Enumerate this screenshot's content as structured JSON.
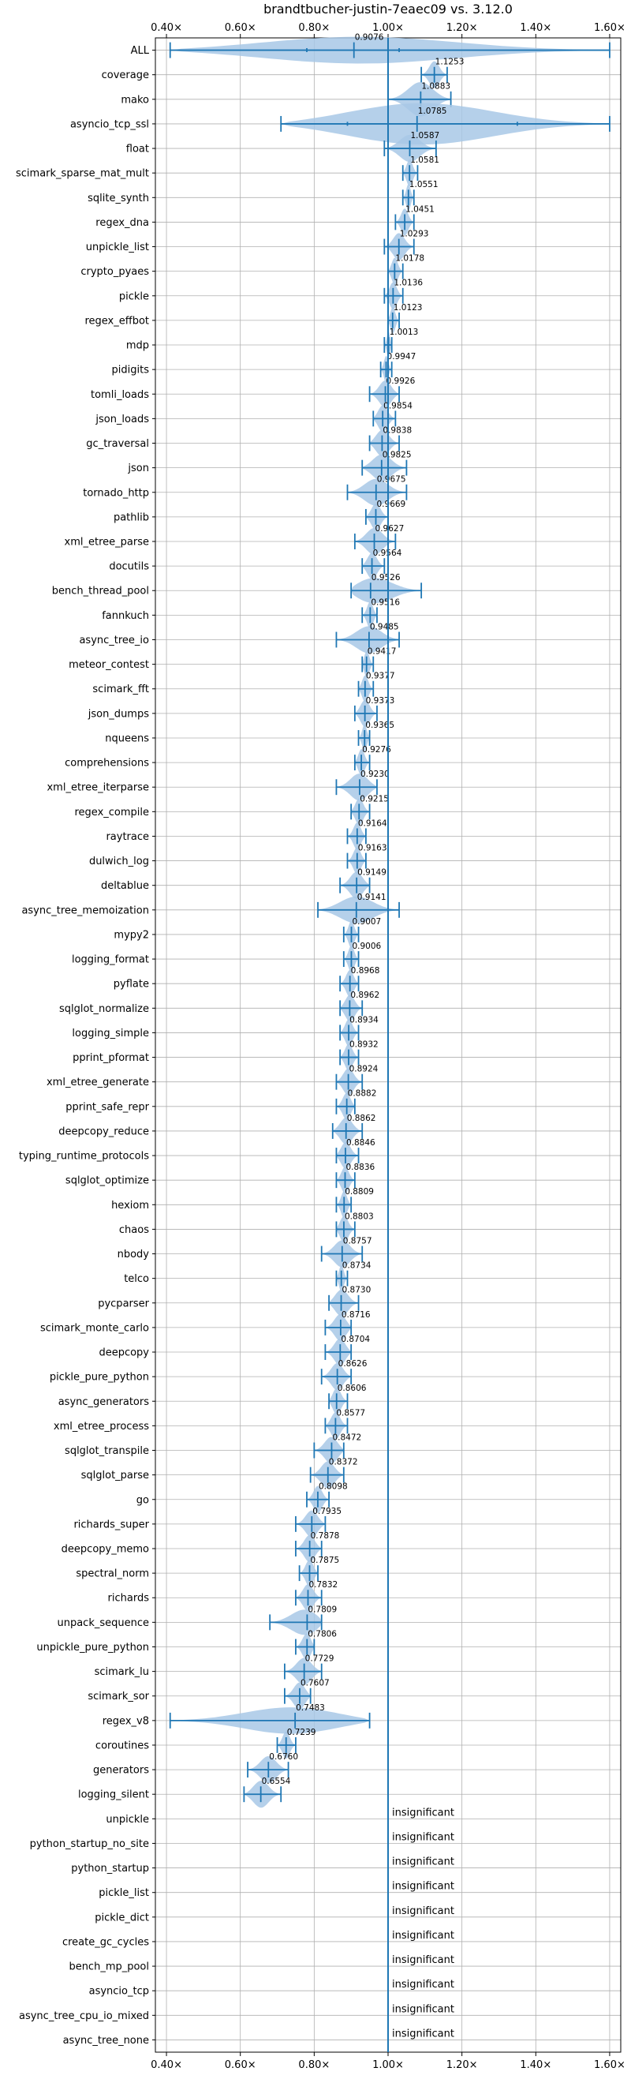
{
  "chart_data": {
    "type": "violin",
    "title": "brandtbucher-justin-7eaec09 vs. 3.12.0",
    "xlim": [
      0.37,
      1.63
    ],
    "xticks": [
      0.4,
      0.6,
      0.8,
      1.0,
      1.2,
      1.4,
      1.6
    ],
    "xtick_labels": [
      "0.40×",
      "0.60×",
      "0.80×",
      "1.00×",
      "1.20×",
      "1.40×",
      "1.60×"
    ],
    "reference_line": 1.0,
    "grid": true,
    "color": "#1f77b4",
    "fill_color": "#a8c8e6",
    "insignificant_label": "insignificant",
    "benchmarks": [
      {
        "name": "ALL",
        "value": 0.9076,
        "label": "0.9076",
        "min": 0.41,
        "max": 1.6,
        "q1": 0.78,
        "q3": 1.03,
        "width": 0.55
      },
      {
        "name": "coverage",
        "value": 1.1253,
        "label": "1.1253",
        "min": 1.09,
        "max": 1.16
      },
      {
        "name": "mako",
        "value": 1.0883,
        "label": "1.0883",
        "min": 1.0,
        "max": 1.17,
        "width": 0.7
      },
      {
        "name": "asyncio_tcp_ssl",
        "value": 1.0785,
        "label": "1.0785",
        "min": 0.71,
        "max": 1.6,
        "q1": 0.89,
        "q3": 1.35,
        "width": 0.85
      },
      {
        "name": "float",
        "value": 1.0587,
        "label": "1.0587",
        "min": 0.99,
        "max": 1.13
      },
      {
        "name": "scimark_sparse_mat_mult",
        "value": 1.0581,
        "label": "1.0581",
        "min": 1.04,
        "max": 1.08
      },
      {
        "name": "sqlite_synth",
        "value": 1.0551,
        "label": "1.0551",
        "min": 1.04,
        "max": 1.07
      },
      {
        "name": "regex_dna",
        "value": 1.0451,
        "label": "1.0451",
        "min": 1.02,
        "max": 1.07
      },
      {
        "name": "unpickle_list",
        "value": 1.0293,
        "label": "1.0293",
        "min": 0.99,
        "max": 1.07
      },
      {
        "name": "crypto_pyaes",
        "value": 1.0178,
        "label": "1.0178",
        "min": 1.0,
        "max": 1.04
      },
      {
        "name": "pickle",
        "value": 1.0136,
        "label": "1.0136",
        "min": 0.99,
        "max": 1.04
      },
      {
        "name": "regex_effbot",
        "value": 1.0123,
        "label": "1.0123",
        "min": 1.0,
        "max": 1.03
      },
      {
        "name": "mdp",
        "value": 1.0013,
        "label": "1.0013",
        "min": 0.99,
        "max": 1.01
      },
      {
        "name": "pidigits",
        "value": 0.9947,
        "label": "0.9947",
        "min": 0.98,
        "max": 1.01
      },
      {
        "name": "tomli_loads",
        "value": 0.9926,
        "label": "0.9926",
        "min": 0.95,
        "max": 1.03
      },
      {
        "name": "json_loads",
        "value": 0.9854,
        "label": "0.9854",
        "min": 0.96,
        "max": 1.02
      },
      {
        "name": "gc_traversal",
        "value": 0.9838,
        "label": "0.9838",
        "min": 0.95,
        "max": 1.03
      },
      {
        "name": "json",
        "value": 0.9825,
        "label": "0.9825",
        "min": 0.93,
        "max": 1.05
      },
      {
        "name": "tornado_http",
        "value": 0.9675,
        "label": "0.9675",
        "min": 0.89,
        "max": 1.05
      },
      {
        "name": "pathlib",
        "value": 0.9669,
        "label": "0.9669",
        "min": 0.94,
        "max": 1.0
      },
      {
        "name": "xml_etree_parse",
        "value": 0.9627,
        "label": "0.9627",
        "min": 0.91,
        "max": 1.02
      },
      {
        "name": "docutils",
        "value": 0.9564,
        "label": "0.9564",
        "min": 0.93,
        "max": 0.99
      },
      {
        "name": "bench_thread_pool",
        "value": 0.9526,
        "label": "0.9526",
        "min": 0.9,
        "max": 1.09
      },
      {
        "name": "fannkuch",
        "value": 0.9516,
        "label": "0.9516",
        "min": 0.93,
        "max": 0.97
      },
      {
        "name": "async_tree_io",
        "value": 0.9485,
        "label": "0.9485",
        "min": 0.86,
        "max": 1.03
      },
      {
        "name": "meteor_contest",
        "value": 0.9417,
        "label": "0.9417",
        "min": 0.93,
        "max": 0.96
      },
      {
        "name": "scimark_fft",
        "value": 0.9377,
        "label": "0.9377",
        "min": 0.92,
        "max": 0.96
      },
      {
        "name": "json_dumps",
        "value": 0.9373,
        "label": "0.9373",
        "min": 0.91,
        "max": 0.97
      },
      {
        "name": "nqueens",
        "value": 0.9365,
        "label": "0.9365",
        "min": 0.92,
        "max": 0.95
      },
      {
        "name": "comprehensions",
        "value": 0.9276,
        "label": "0.9276",
        "min": 0.91,
        "max": 0.95
      },
      {
        "name": "xml_etree_iterparse",
        "value": 0.923,
        "label": "0.9230",
        "min": 0.86,
        "max": 0.97
      },
      {
        "name": "regex_compile",
        "value": 0.9215,
        "label": "0.9215",
        "min": 0.9,
        "max": 0.95
      },
      {
        "name": "raytrace",
        "value": 0.9164,
        "label": "0.9164",
        "min": 0.89,
        "max": 0.94
      },
      {
        "name": "dulwich_log",
        "value": 0.9163,
        "label": "0.9163",
        "min": 0.89,
        "max": 0.94
      },
      {
        "name": "deltablue",
        "value": 0.9149,
        "label": "0.9149",
        "min": 0.87,
        "max": 0.95
      },
      {
        "name": "async_tree_memoization",
        "value": 0.9141,
        "label": "0.9141",
        "min": 0.81,
        "max": 1.03
      },
      {
        "name": "mypy2",
        "value": 0.9007,
        "label": "0.9007",
        "min": 0.88,
        "max": 0.92
      },
      {
        "name": "logging_format",
        "value": 0.9006,
        "label": "0.9006",
        "min": 0.88,
        "max": 0.92
      },
      {
        "name": "pyflate",
        "value": 0.8968,
        "label": "0.8968",
        "min": 0.87,
        "max": 0.92
      },
      {
        "name": "sqlglot_normalize",
        "value": 0.8962,
        "label": "0.8962",
        "min": 0.87,
        "max": 0.93
      },
      {
        "name": "logging_simple",
        "value": 0.8934,
        "label": "0.8934",
        "min": 0.87,
        "max": 0.92
      },
      {
        "name": "pprint_pformat",
        "value": 0.8932,
        "label": "0.8932",
        "min": 0.87,
        "max": 0.92
      },
      {
        "name": "xml_etree_generate",
        "value": 0.8924,
        "label": "0.8924",
        "min": 0.86,
        "max": 0.93
      },
      {
        "name": "pprint_safe_repr",
        "value": 0.8882,
        "label": "0.8882",
        "min": 0.86,
        "max": 0.91
      },
      {
        "name": "deepcopy_reduce",
        "value": 0.8862,
        "label": "0.8862",
        "min": 0.85,
        "max": 0.93
      },
      {
        "name": "typing_runtime_protocols",
        "value": 0.8846,
        "label": "0.8846",
        "min": 0.86,
        "max": 0.92
      },
      {
        "name": "sqlglot_optimize",
        "value": 0.8836,
        "label": "0.8836",
        "min": 0.86,
        "max": 0.91
      },
      {
        "name": "hexiom",
        "value": 0.8809,
        "label": "0.8809",
        "min": 0.86,
        "max": 0.9
      },
      {
        "name": "chaos",
        "value": 0.8803,
        "label": "0.8803",
        "min": 0.86,
        "max": 0.91
      },
      {
        "name": "nbody",
        "value": 0.8757,
        "label": "0.8757",
        "min": 0.82,
        "max": 0.93
      },
      {
        "name": "telco",
        "value": 0.8734,
        "label": "0.8734",
        "min": 0.86,
        "max": 0.89
      },
      {
        "name": "pycparser",
        "value": 0.873,
        "label": "0.8730",
        "min": 0.84,
        "max": 0.92
      },
      {
        "name": "scimark_monte_carlo",
        "value": 0.8716,
        "label": "0.8716",
        "min": 0.83,
        "max": 0.9
      },
      {
        "name": "deepcopy",
        "value": 0.8704,
        "label": "0.8704",
        "min": 0.83,
        "max": 0.9
      },
      {
        "name": "pickle_pure_python",
        "value": 0.8626,
        "label": "0.8626",
        "min": 0.82,
        "max": 0.9
      },
      {
        "name": "async_generators",
        "value": 0.8606,
        "label": "0.8606",
        "min": 0.84,
        "max": 0.89
      },
      {
        "name": "xml_etree_process",
        "value": 0.8577,
        "label": "0.8577",
        "min": 0.83,
        "max": 0.89
      },
      {
        "name": "sqlglot_transpile",
        "value": 0.8472,
        "label": "0.8472",
        "min": 0.8,
        "max": 0.88
      },
      {
        "name": "sqlglot_parse",
        "value": 0.8372,
        "label": "0.8372",
        "min": 0.79,
        "max": 0.88
      },
      {
        "name": "go",
        "value": 0.8098,
        "label": "0.8098",
        "min": 0.78,
        "max": 0.84
      },
      {
        "name": "richards_super",
        "value": 0.7935,
        "label": "0.7935",
        "min": 0.75,
        "max": 0.83
      },
      {
        "name": "deepcopy_memo",
        "value": 0.7878,
        "label": "0.7878",
        "min": 0.75,
        "max": 0.82
      },
      {
        "name": "spectral_norm",
        "value": 0.7875,
        "label": "0.7875",
        "min": 0.76,
        "max": 0.81
      },
      {
        "name": "richards",
        "value": 0.7832,
        "label": "0.7832",
        "min": 0.75,
        "max": 0.82
      },
      {
        "name": "unpack_sequence",
        "value": 0.7809,
        "label": "0.7809",
        "min": 0.68,
        "max": 0.82
      },
      {
        "name": "unpickle_pure_python",
        "value": 0.7806,
        "label": "0.7806",
        "min": 0.75,
        "max": 0.8
      },
      {
        "name": "scimark_lu",
        "value": 0.7729,
        "label": "0.7729",
        "min": 0.72,
        "max": 0.82
      },
      {
        "name": "scimark_sor",
        "value": 0.7607,
        "label": "0.7607",
        "min": 0.72,
        "max": 0.79
      },
      {
        "name": "regex_v8",
        "value": 0.7483,
        "label": "0.7483",
        "min": 0.41,
        "max": 0.95,
        "width": 0.55
      },
      {
        "name": "coroutines",
        "value": 0.7239,
        "label": "0.7239",
        "min": 0.7,
        "max": 0.75
      },
      {
        "name": "generators",
        "value": 0.676,
        "label": "0.6760",
        "min": 0.62,
        "max": 0.73
      },
      {
        "name": "logging_silent",
        "value": 0.6554,
        "label": "0.6554",
        "min": 0.61,
        "max": 0.71
      },
      {
        "name": "unpickle",
        "insignificant": true
      },
      {
        "name": "python_startup_no_site",
        "insignificant": true
      },
      {
        "name": "python_startup",
        "insignificant": true
      },
      {
        "name": "pickle_list",
        "insignificant": true
      },
      {
        "name": "pickle_dict",
        "insignificant": true
      },
      {
        "name": "create_gc_cycles",
        "insignificant": true
      },
      {
        "name": "bench_mp_pool",
        "insignificant": true
      },
      {
        "name": "asyncio_tcp",
        "insignificant": true
      },
      {
        "name": "async_tree_cpu_io_mixed",
        "insignificant": true
      },
      {
        "name": "async_tree_none",
        "insignificant": true
      }
    ]
  }
}
